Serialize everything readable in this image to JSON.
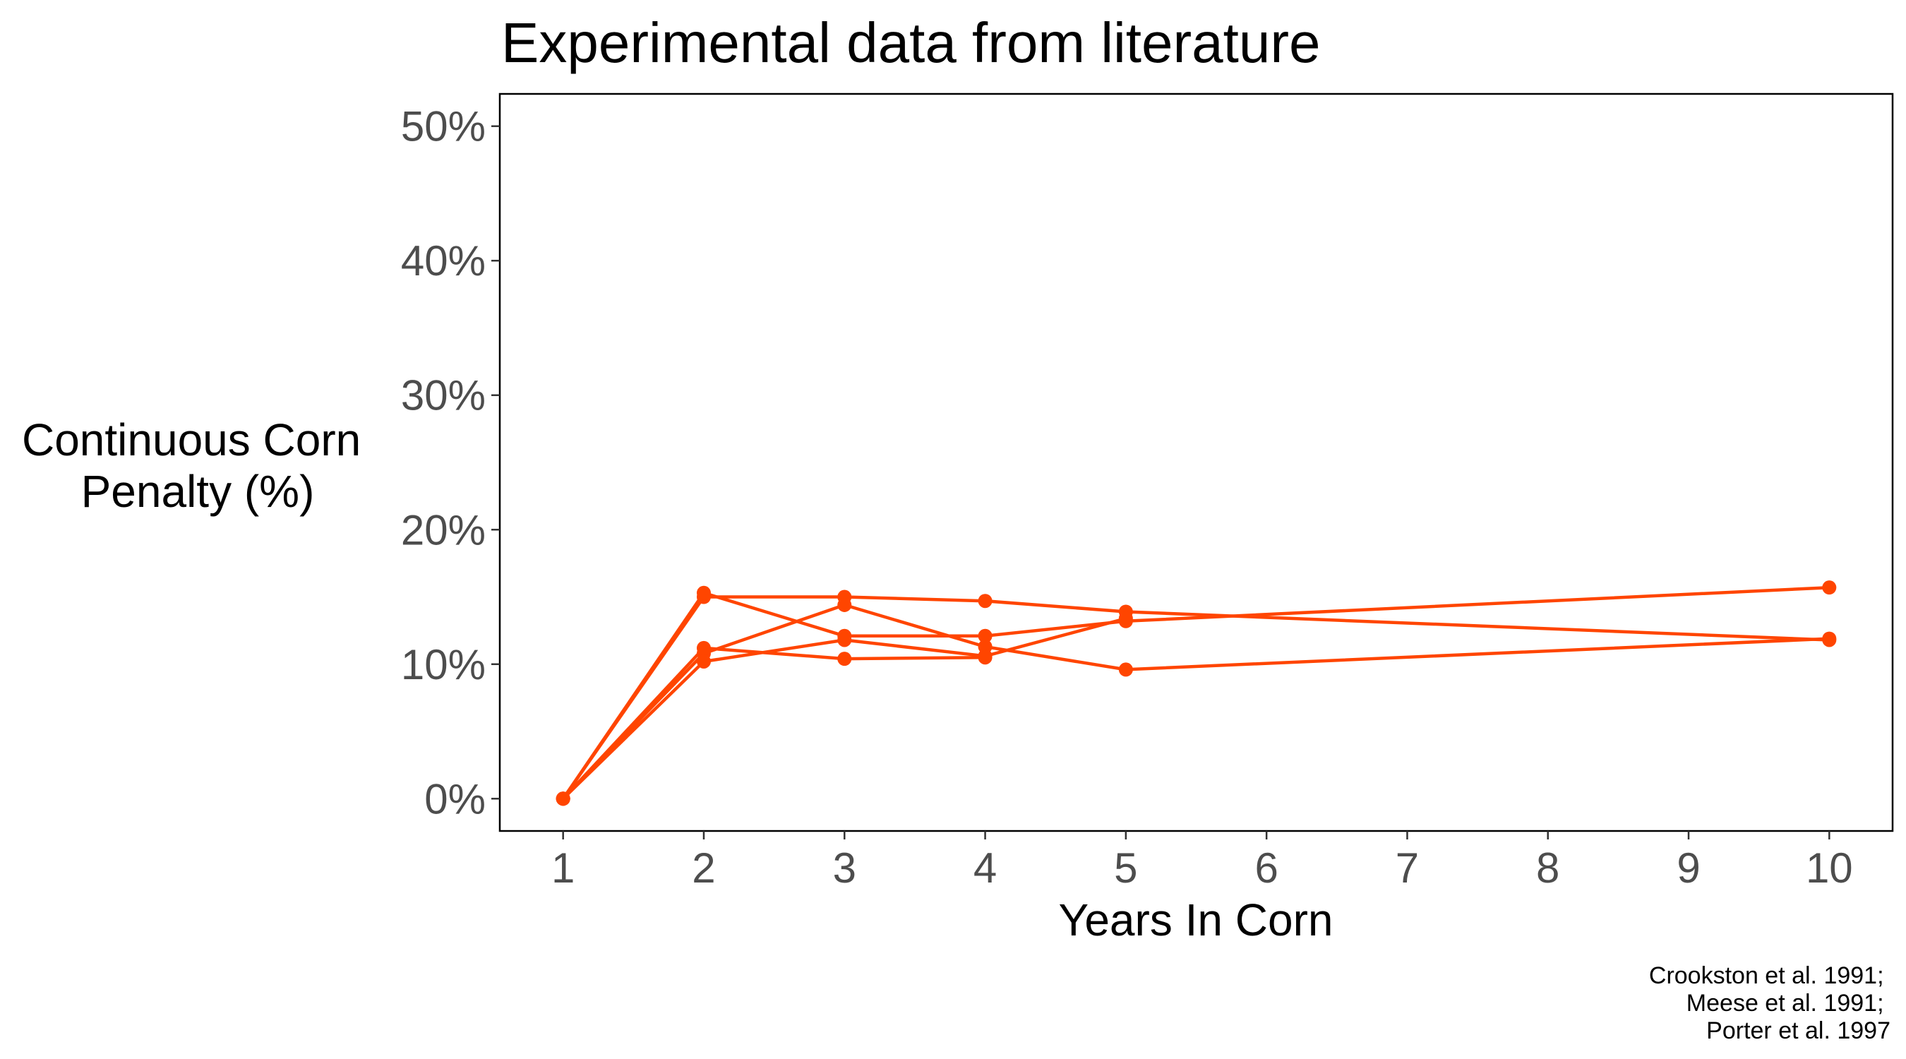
{
  "chart_data": {
    "type": "line",
    "title": "Experimental data from literature",
    "xlabel": "Years In Corn",
    "ylabel_lines": [
      "Continuous Corn",
      "Penalty (%)"
    ],
    "xlim": [
      0.55,
      10.45
    ],
    "ylim": [
      -2.4,
      52.4
    ],
    "x_ticks": [
      1,
      2,
      3,
      4,
      5,
      6,
      7,
      8,
      9,
      10
    ],
    "x_tick_labels": [
      "1",
      "2",
      "3",
      "4",
      "5",
      "6",
      "7",
      "8",
      "9",
      "10"
    ],
    "y_ticks": [
      0,
      10,
      20,
      30,
      40,
      50
    ],
    "y_tick_labels": [
      "0%",
      "10%",
      "20%",
      "30%",
      "40%",
      "50%"
    ],
    "grid": false,
    "legend": "none",
    "series_color": "#ff4500",
    "series": [
      {
        "x": [
          1,
          2,
          3,
          4,
          5,
          10
        ],
        "y": [
          0,
          15.0,
          15.0,
          14.7,
          13.9,
          11.8
        ]
      },
      {
        "x": [
          1,
          2,
          3,
          4,
          5,
          10
        ],
        "y": [
          0,
          15.3,
          12.1,
          12.1,
          13.2,
          15.7
        ]
      },
      {
        "x": [
          1,
          2,
          3,
          4,
          5,
          10
        ],
        "y": [
          0,
          10.8,
          14.4,
          11.3,
          9.6,
          11.9
        ]
      },
      {
        "x": [
          1,
          2,
          3,
          4,
          5
        ],
        "y": [
          0,
          10.2,
          11.8,
          10.6,
          13.4
        ]
      },
      {
        "x": [
          1,
          2,
          3,
          4
        ],
        "y": [
          0,
          11.2,
          10.4,
          10.5
        ]
      }
    ],
    "caption_lines": [
      "Crookston et al. 1991;",
      "Meese et al. 1991;",
      "Porter et al. 1997"
    ]
  }
}
